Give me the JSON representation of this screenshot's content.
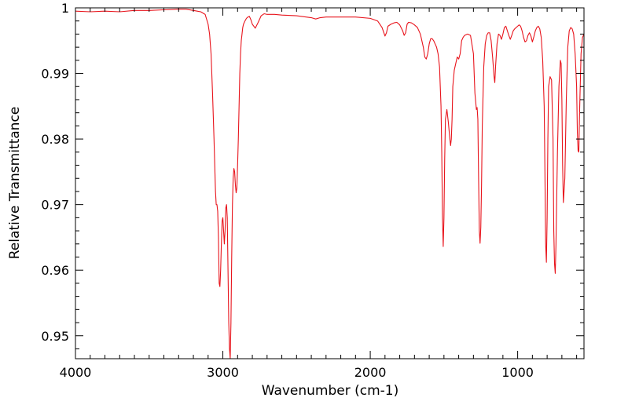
{
  "chart_data": {
    "type": "line",
    "title": "",
    "xlabel": "Wavenumber (cm-1)",
    "ylabel": "Relative Transmittance",
    "xlim": [
      4000,
      550
    ],
    "ylim": [
      0.9465,
      1.0
    ],
    "x_reversed": true,
    "grid": false,
    "legend": "none",
    "x_ticks": [
      {
        "value": 4000,
        "label": "4000"
      },
      {
        "value": 3000,
        "label": "3000"
      },
      {
        "value": 2000,
        "label": "2000"
      },
      {
        "value": 1000,
        "label": "1000"
      }
    ],
    "y_ticks": [
      {
        "value": 1.0,
        "label": "1"
      },
      {
        "value": 0.99,
        "label": "0.99"
      },
      {
        "value": 0.98,
        "label": "0.98"
      },
      {
        "value": 0.97,
        "label": "0.97"
      },
      {
        "value": 0.96,
        "label": "0.96"
      },
      {
        "value": 0.95,
        "label": "0.95"
      }
    ],
    "series": [
      {
        "color": "#e8141c",
        "x": [
          4000,
          3900,
          3800,
          3700,
          3600,
          3500,
          3400,
          3300,
          3250,
          3200,
          3150,
          3120,
          3100,
          3090,
          3080,
          3070,
          3060,
          3050,
          3045,
          3040,
          3035,
          3030,
          3025,
          3020,
          3015,
          3010,
          3005,
          3000,
          2995,
          2990,
          2985,
          2980,
          2975,
          2970,
          2965,
          2960,
          2955,
          2950,
          2945,
          2940,
          2935,
          2930,
          2925,
          2920,
          2915,
          2910,
          2905,
          2900,
          2895,
          2890,
          2885,
          2880,
          2875,
          2870,
          2865,
          2860,
          2850,
          2840,
          2830,
          2820,
          2810,
          2800,
          2780,
          2760,
          2740,
          2720,
          2700,
          2650,
          2600,
          2500,
          2400,
          2370,
          2340,
          2300,
          2200,
          2100,
          2000,
          1950,
          1920,
          1900,
          1890,
          1880,
          1860,
          1840,
          1820,
          1800,
          1780,
          1770,
          1760,
          1750,
          1740,
          1720,
          1700,
          1680,
          1660,
          1640,
          1630,
          1620,
          1610,
          1600,
          1590,
          1580,
          1570,
          1560,
          1550,
          1540,
          1530,
          1520,
          1515,
          1510,
          1505,
          1500,
          1495,
          1490,
          1480,
          1470,
          1460,
          1455,
          1450,
          1445,
          1440,
          1430,
          1420,
          1410,
          1400,
          1390,
          1380,
          1370,
          1360,
          1340,
          1320,
          1300,
          1290,
          1280,
          1275,
          1270,
          1265,
          1260,
          1255,
          1250,
          1245,
          1240,
          1230,
          1220,
          1210,
          1200,
          1190,
          1180,
          1170,
          1160,
          1155,
          1150,
          1140,
          1130,
          1120,
          1110,
          1100,
          1090,
          1080,
          1070,
          1060,
          1050,
          1040,
          1030,
          1020,
          1010,
          1000,
          990,
          980,
          970,
          960,
          950,
          940,
          930,
          920,
          910,
          900,
          890,
          880,
          870,
          860,
          850,
          840,
          830,
          820,
          815,
          810,
          805,
          800,
          795,
          790,
          780,
          770,
          760,
          755,
          750,
          745,
          740,
          730,
          720,
          710,
          705,
          700,
          695,
          690,
          680,
          670,
          660,
          650,
          640,
          630,
          620,
          610,
          600,
          595,
          590,
          585,
          580,
          570,
          560,
          550
        ],
        "y": [
          0.9995,
          0.9994,
          0.9995,
          0.9994,
          0.9996,
          0.9996,
          0.9997,
          0.9998,
          0.9998,
          0.9996,
          0.9994,
          0.999,
          0.9975,
          0.996,
          0.993,
          0.987,
          0.98,
          0.972,
          0.97,
          0.97,
          0.969,
          0.965,
          0.958,
          0.9575,
          0.96,
          0.964,
          0.9675,
          0.968,
          0.966,
          0.964,
          0.966,
          0.9695,
          0.97,
          0.968,
          0.96,
          0.952,
          0.948,
          0.9465,
          0.952,
          0.962,
          0.97,
          0.974,
          0.9755,
          0.975,
          0.973,
          0.9718,
          0.9725,
          0.976,
          0.98,
          0.985,
          0.99,
          0.993,
          0.995,
          0.996,
          0.997,
          0.9975,
          0.998,
          0.9984,
          0.9986,
          0.9987,
          0.9982,
          0.9975,
          0.9969,
          0.9978,
          0.9988,
          0.9991,
          0.999,
          0.999,
          0.9989,
          0.9988,
          0.9985,
          0.9983,
          0.9985,
          0.9986,
          0.9986,
          0.9986,
          0.9984,
          0.998,
          0.997,
          0.9957,
          0.9962,
          0.9972,
          0.9975,
          0.9977,
          0.9978,
          0.9974,
          0.9965,
          0.9958,
          0.9962,
          0.9975,
          0.9978,
          0.9977,
          0.9974,
          0.997,
          0.996,
          0.994,
          0.9925,
          0.9922,
          0.993,
          0.9945,
          0.9953,
          0.9953,
          0.995,
          0.9945,
          0.994,
          0.993,
          0.991,
          0.985,
          0.978,
          0.968,
          0.9636,
          0.968,
          0.977,
          0.983,
          0.9845,
          0.9825,
          0.98,
          0.979,
          0.98,
          0.983,
          0.988,
          0.9905,
          0.9915,
          0.9925,
          0.9922,
          0.993,
          0.995,
          0.9955,
          0.9958,
          0.996,
          0.9958,
          0.993,
          0.987,
          0.9845,
          0.9848,
          0.983,
          0.974,
          0.966,
          0.9641,
          0.9665,
          0.973,
          0.982,
          0.991,
          0.9945,
          0.9958,
          0.9962,
          0.9962,
          0.995,
          0.9925,
          0.9895,
          0.9886,
          0.991,
          0.9945,
          0.996,
          0.9958,
          0.9952,
          0.996,
          0.997,
          0.9972,
          0.9965,
          0.9958,
          0.9952,
          0.9958,
          0.9965,
          0.9968,
          0.997,
          0.9972,
          0.9974,
          0.9972,
          0.9965,
          0.9955,
          0.9948,
          0.995,
          0.9958,
          0.9962,
          0.9957,
          0.9948,
          0.9956,
          0.9965,
          0.997,
          0.9972,
          0.9968,
          0.9955,
          0.992,
          0.985,
          0.975,
          0.964,
          0.9612,
          0.968,
          0.98,
          0.988,
          0.9895,
          0.989,
          0.98,
          0.966,
          0.961,
          0.9595,
          0.964,
          0.978,
          0.988,
          0.992,
          0.9915,
          0.986,
          0.976,
          0.9703,
          0.974,
          0.986,
          0.994,
          0.9965,
          0.997,
          0.9968,
          0.996,
          0.993,
          0.988,
          0.981,
          0.9782,
          0.978,
          0.984,
          0.993,
          0.9955,
          0.996
        ]
      }
    ]
  }
}
